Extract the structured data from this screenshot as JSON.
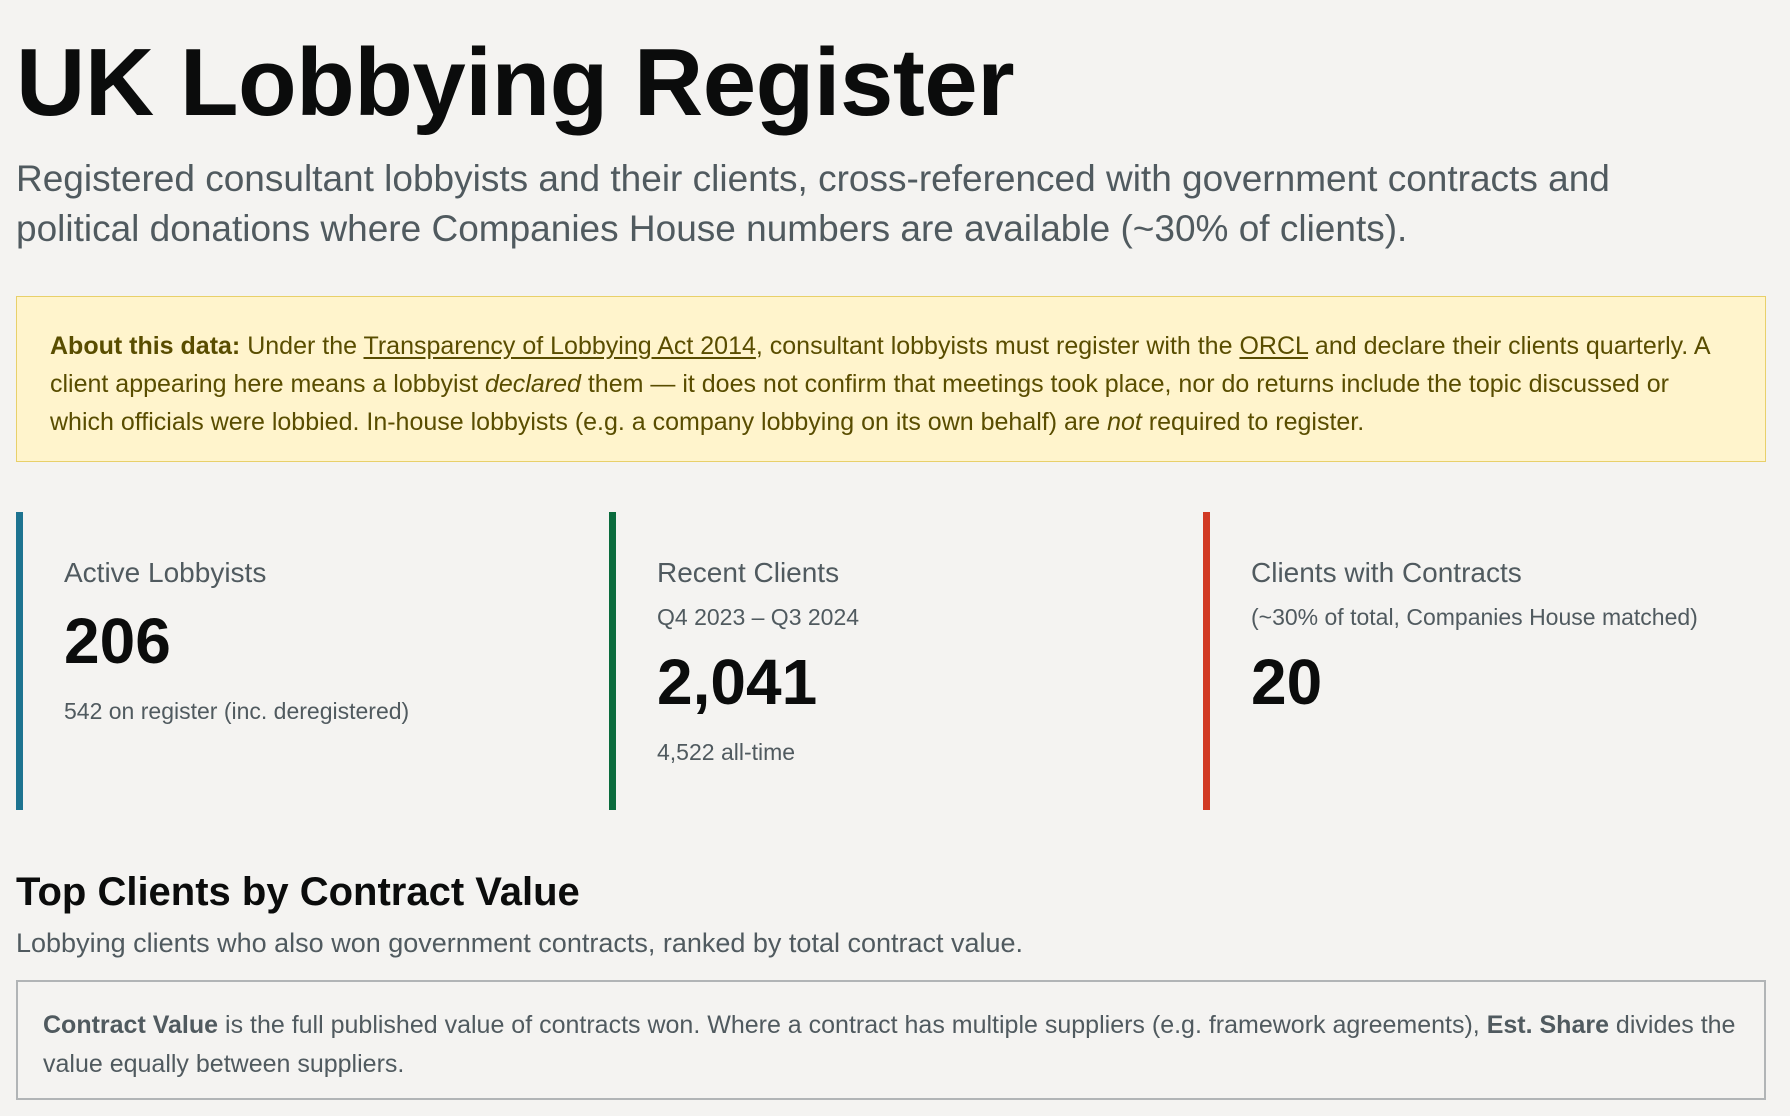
{
  "header": {
    "title": "UK Lobbying Register",
    "subtitle": "Registered consultant lobbyists and their clients, cross-referenced with government contracts and political donations where Companies House numbers are available (~30% of clients)."
  },
  "notice": {
    "label": "About this data:",
    "text_1": " Under the ",
    "link_act": "Transparency of Lobbying Act 2014",
    "text_2": ", consultant lobbyists must register with the ",
    "link_orcl": "ORCL",
    "text_3": " and declare their clients quarterly. A client appearing here means a lobbyist ",
    "em_declared": "declared",
    "text_4": " them — it does not confirm that meetings took place, nor do returns include the topic discussed or which officials were lobbied. In-house lobbyists (e.g. a company lobbying on its own behalf) are ",
    "em_not": "not",
    "text_5": " required to register."
  },
  "stats": [
    {
      "label": "Active Lobbyists",
      "value": "206",
      "note": "542 on register (inc. deregistered)",
      "accent": "#1d7390"
    },
    {
      "label": "Recent Clients",
      "period": "Q4 2023 – Q3 2024",
      "value": "2,041",
      "note": "4,522 all-time",
      "accent": "#0a6b3d"
    },
    {
      "label": "Clients with Contracts",
      "period": "(~30% of total, Companies House matched)",
      "value": "20",
      "accent": "#d13a24"
    }
  ],
  "top_clients": {
    "title": "Top Clients by Contract Value",
    "description": "Lobbying clients who also won government contracts, ranked by total contract value.",
    "info": {
      "term_1": "Contract Value",
      "text_1": " is the full published value of contracts won. Where a contract has multiple suppliers (e.g. framework agreements), ",
      "term_2": "Est. Share",
      "text_2": " divides the value equally between suppliers."
    }
  }
}
